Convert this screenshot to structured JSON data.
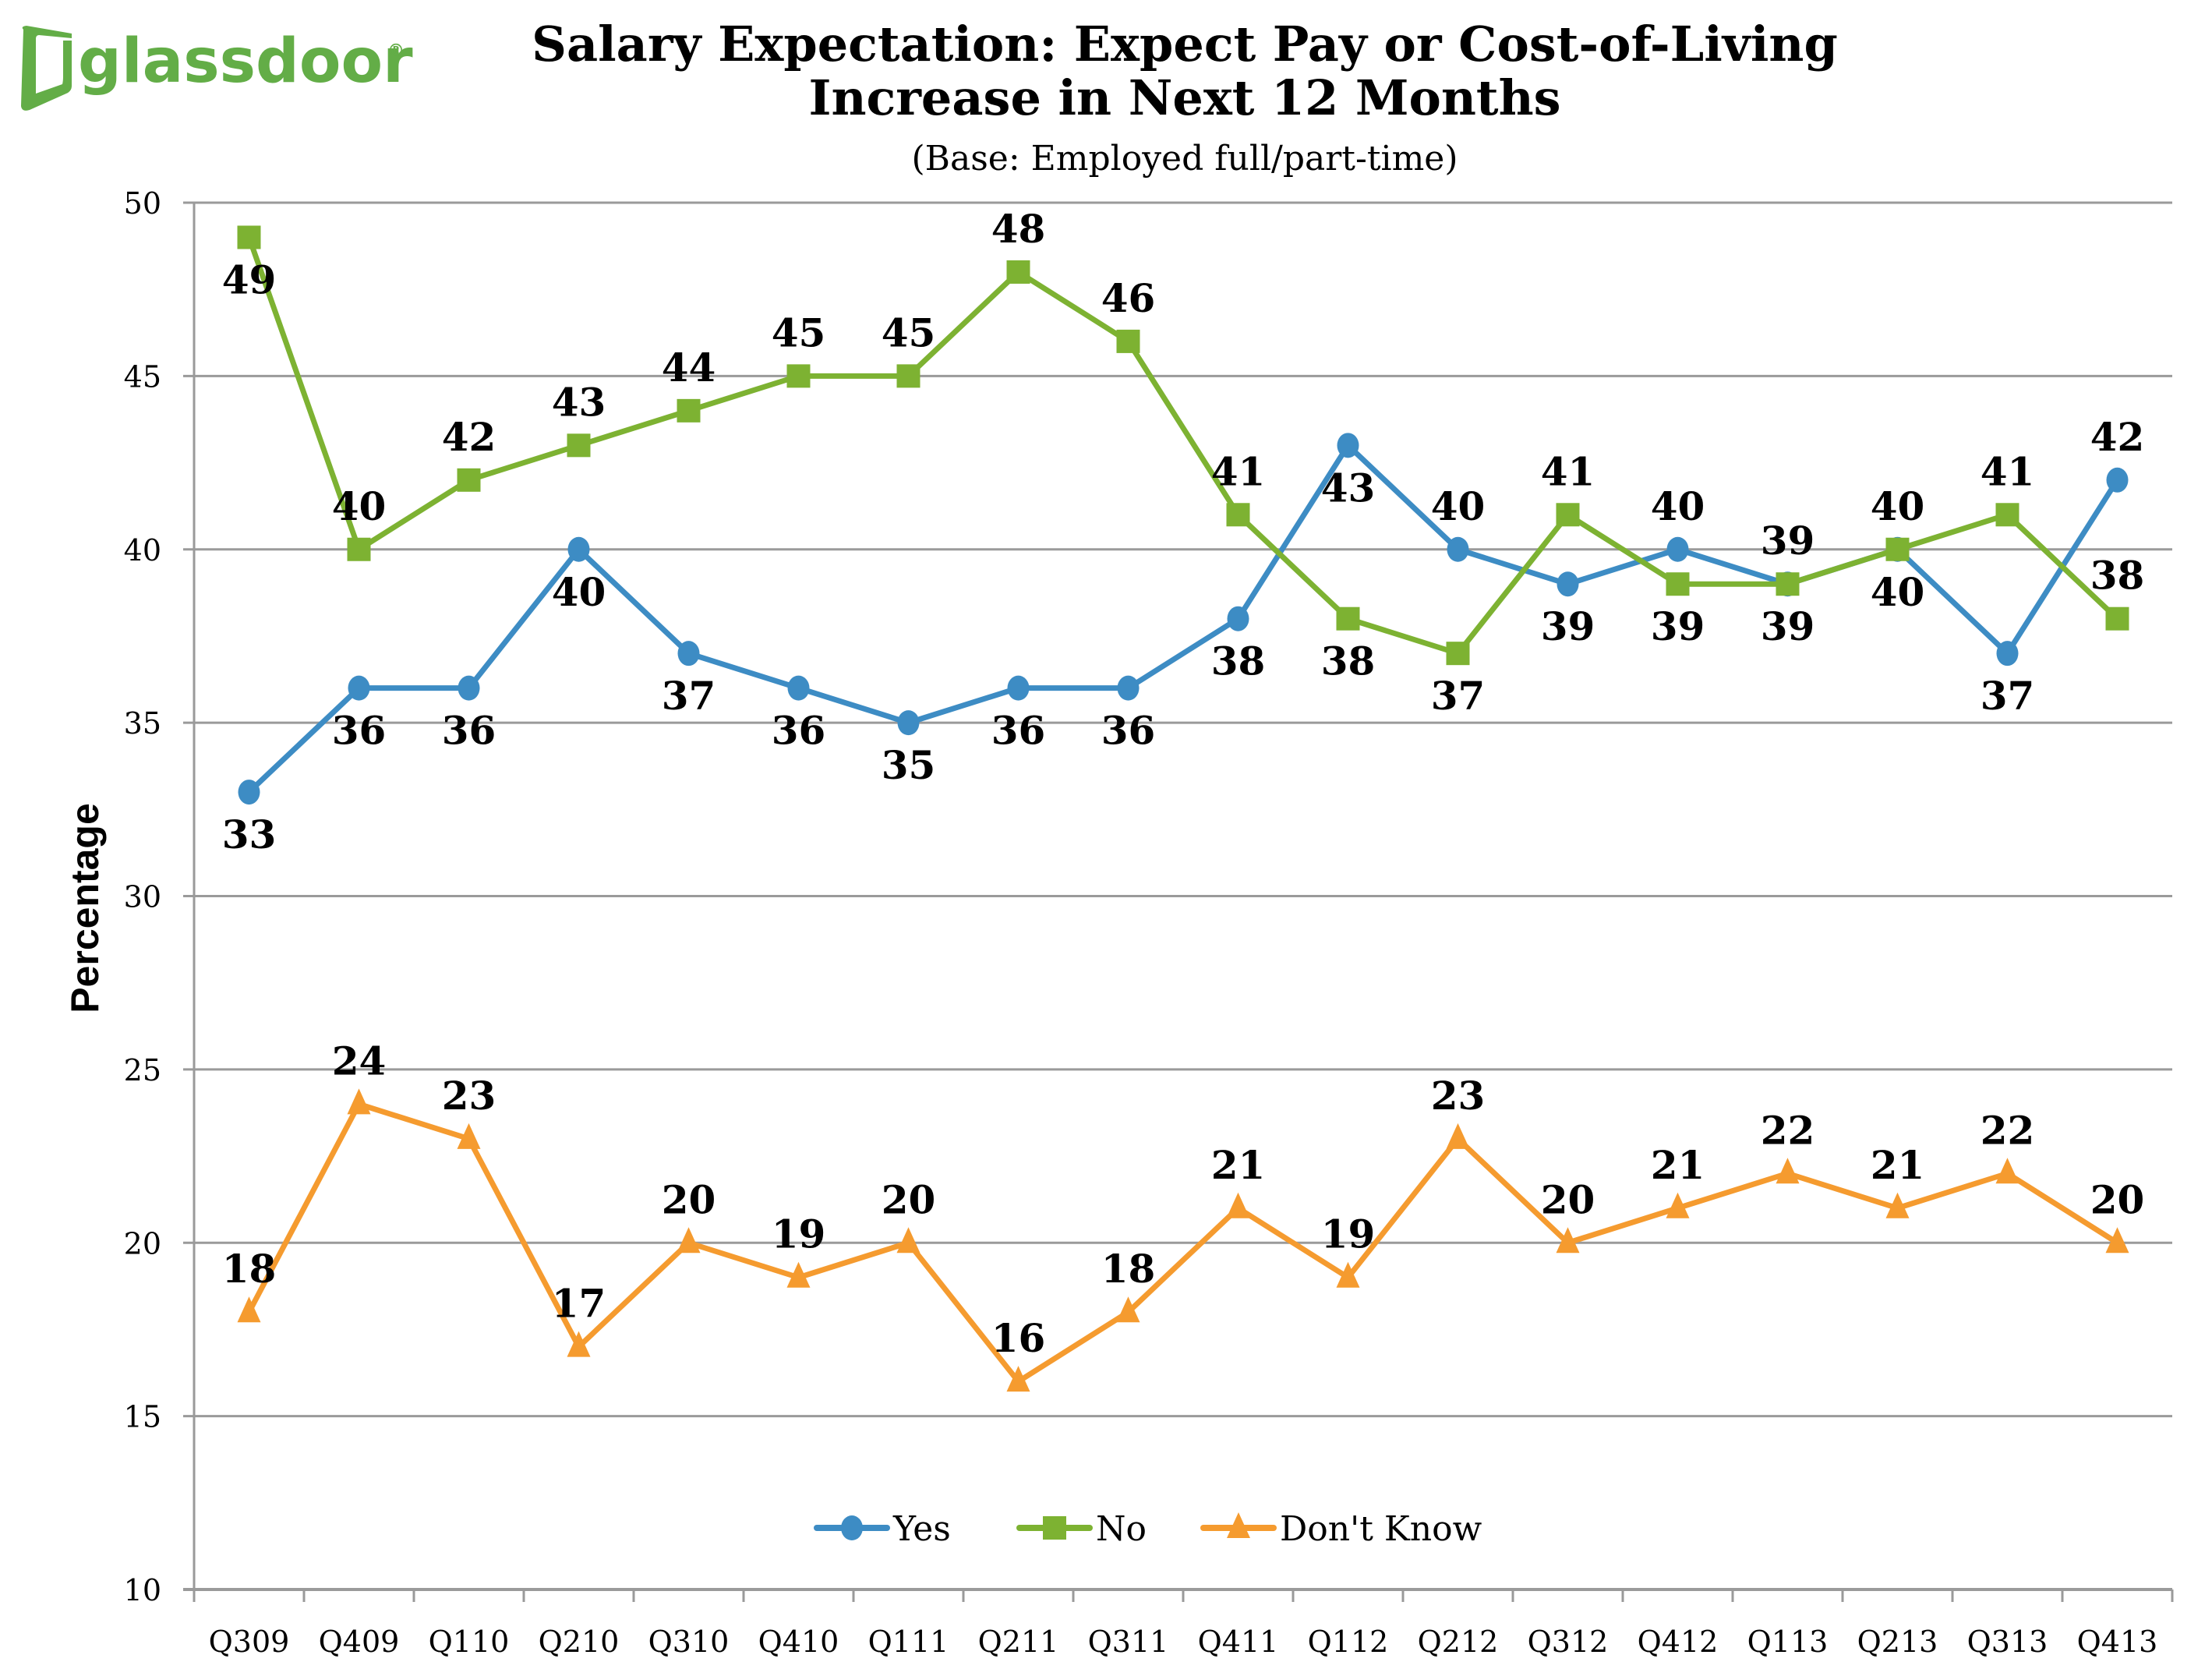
{
  "brand": {
    "name": "glassdoor",
    "registered_mark": "®",
    "color": "#63ad47"
  },
  "chart_data": {
    "type": "line",
    "title": "Salary Expectation: Expect Pay or Cost-of-Living",
    "title_line2": "Increase in Next 12 Months",
    "subtitle": "(Base: Employed full/part-time)",
    "xlabel": "",
    "ylabel": "Percentage",
    "ylim": [
      10,
      50
    ],
    "yticks": [
      10,
      15,
      20,
      25,
      30,
      35,
      40,
      45,
      50
    ],
    "grid": true,
    "legend_position": "bottom-center",
    "categories": [
      "Q309",
      "Q409",
      "Q110",
      "Q210",
      "Q310",
      "Q410",
      "Q111",
      "Q211",
      "Q311",
      "Q411",
      "Q112",
      "Q212",
      "Q312",
      "Q412",
      "Q113",
      "Q213",
      "Q313",
      "Q413"
    ],
    "series": [
      {
        "name": "Yes",
        "color": "#3d8cc4",
        "marker": "circle",
        "values": [
          33,
          36,
          36,
          40,
          37,
          36,
          35,
          36,
          36,
          38,
          43,
          40,
          39,
          40,
          39,
          40,
          37,
          42
        ],
        "label_pos": [
          "below",
          "below",
          "below",
          "below",
          "below",
          "below",
          "below",
          "below",
          "below",
          "below",
          "below",
          "above",
          "below",
          "above",
          "above",
          "below",
          "below",
          "above"
        ]
      },
      {
        "name": "No",
        "color": "#7db232",
        "marker": "square",
        "values": [
          49,
          40,
          42,
          43,
          44,
          45,
          45,
          48,
          46,
          41,
          38,
          37,
          41,
          39,
          39,
          40,
          41,
          38
        ],
        "label_pos": [
          "below",
          "above",
          "above",
          "above",
          "above",
          "above",
          "above",
          "above",
          "above",
          "above",
          "below",
          "below",
          "above",
          "below",
          "below",
          "above",
          "above",
          "above"
        ]
      },
      {
        "name": "Don't Know",
        "color": "#f59b2f",
        "marker": "triangle",
        "values": [
          18,
          24,
          23,
          17,
          20,
          19,
          20,
          16,
          18,
          21,
          19,
          23,
          20,
          21,
          22,
          21,
          22,
          20
        ],
        "label_pos": [
          "above",
          "above",
          "above",
          "above",
          "above",
          "above",
          "above",
          "above",
          "above",
          "above",
          "above",
          "above",
          "above",
          "above",
          "above",
          "above",
          "above",
          "above"
        ]
      }
    ]
  }
}
